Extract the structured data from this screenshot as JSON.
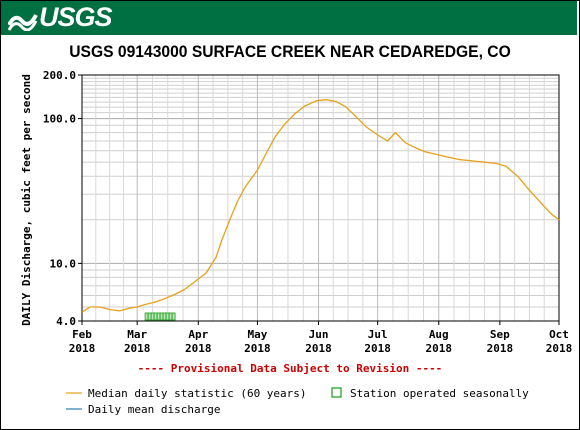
{
  "header": {
    "logo_text": "USGS",
    "banner_color": "#006f41"
  },
  "chart_data": {
    "type": "line",
    "title": "USGS 09143000 SURFACE CREEK NEAR CEDAREDGE, CO",
    "ylabel": "DAILY Discharge, cubic feet per second",
    "yscale": "log",
    "ylim": [
      4.0,
      200.0
    ],
    "y_tick_labels": [
      "4.0",
      "10.0",
      "100.0",
      "200.0"
    ],
    "x_tick_labels": [
      {
        "month": "Feb",
        "year": "2018"
      },
      {
        "month": "Mar",
        "year": "2018"
      },
      {
        "month": "Apr",
        "year": "2018"
      },
      {
        "month": "May",
        "year": "2018"
      },
      {
        "month": "Jun",
        "year": "2018"
      },
      {
        "month": "Jul",
        "year": "2018"
      },
      {
        "month": "Aug",
        "year": "2018"
      },
      {
        "month": "Sep",
        "year": "2018"
      },
      {
        "month": "Oct",
        "year": "2018"
      }
    ],
    "grid": true,
    "annotation": "---- Provisional Data Subject to Revision ----",
    "series": [
      {
        "name": "Median daily statistic (60 years)",
        "color": "#e6a117",
        "points": [
          [
            "2018-02-01",
            4.6
          ],
          [
            "2018-02-05",
            5.0
          ],
          [
            "2018-02-10",
            5.0
          ],
          [
            "2018-02-15",
            4.8
          ],
          [
            "2018-02-20",
            4.7
          ],
          [
            "2018-02-25",
            4.9
          ],
          [
            "2018-03-01",
            5.0
          ],
          [
            "2018-03-05",
            5.2
          ],
          [
            "2018-03-10",
            5.4
          ],
          [
            "2018-03-15",
            5.7
          ],
          [
            "2018-03-20",
            6.1
          ],
          [
            "2018-03-25",
            6.6
          ],
          [
            "2018-03-31",
            7.6
          ],
          [
            "2018-04-05",
            8.6
          ],
          [
            "2018-04-10",
            11.0
          ],
          [
            "2018-04-13",
            14.5
          ],
          [
            "2018-04-17",
            20.0
          ],
          [
            "2018-04-21",
            27.0
          ],
          [
            "2018-04-25",
            34.0
          ],
          [
            "2018-05-01",
            44.0
          ],
          [
            "2018-05-05",
            56.0
          ],
          [
            "2018-05-10",
            75.0
          ],
          [
            "2018-05-15",
            92.0
          ],
          [
            "2018-05-20",
            108.0
          ],
          [
            "2018-05-25",
            122.0
          ],
          [
            "2018-05-31",
            133.0
          ],
          [
            "2018-06-05",
            135.0
          ],
          [
            "2018-06-10",
            131.0
          ],
          [
            "2018-06-15",
            120.0
          ],
          [
            "2018-06-20",
            103.0
          ],
          [
            "2018-06-25",
            88.0
          ],
          [
            "2018-07-01",
            77.0
          ],
          [
            "2018-07-06",
            70.0
          ],
          [
            "2018-07-10",
            80.0
          ],
          [
            "2018-07-15",
            68.0
          ],
          [
            "2018-07-20",
            63.0
          ],
          [
            "2018-07-25",
            59.0
          ],
          [
            "2018-08-01",
            56.0
          ],
          [
            "2018-08-06",
            54.0
          ],
          [
            "2018-08-12",
            52.0
          ],
          [
            "2018-08-18",
            51.0
          ],
          [
            "2018-08-24",
            50.0
          ],
          [
            "2018-08-30",
            49.0
          ],
          [
            "2018-09-04",
            47.0
          ],
          [
            "2018-09-10",
            40.0
          ],
          [
            "2018-09-16",
            32.0
          ],
          [
            "2018-09-22",
            26.0
          ],
          [
            "2018-09-27",
            22.0
          ],
          [
            "2018-10-01",
            20.0
          ]
        ]
      },
      {
        "name": "Daily mean discharge",
        "color": "#2a7fb0",
        "points": []
      }
    ],
    "seasonal_marker": {
      "name": "Station operated seasonally",
      "color": "#1a9a1a",
      "start": "2018-03-05",
      "end": "2018-03-20",
      "y": 4.0
    },
    "legend": "bottom-left"
  }
}
